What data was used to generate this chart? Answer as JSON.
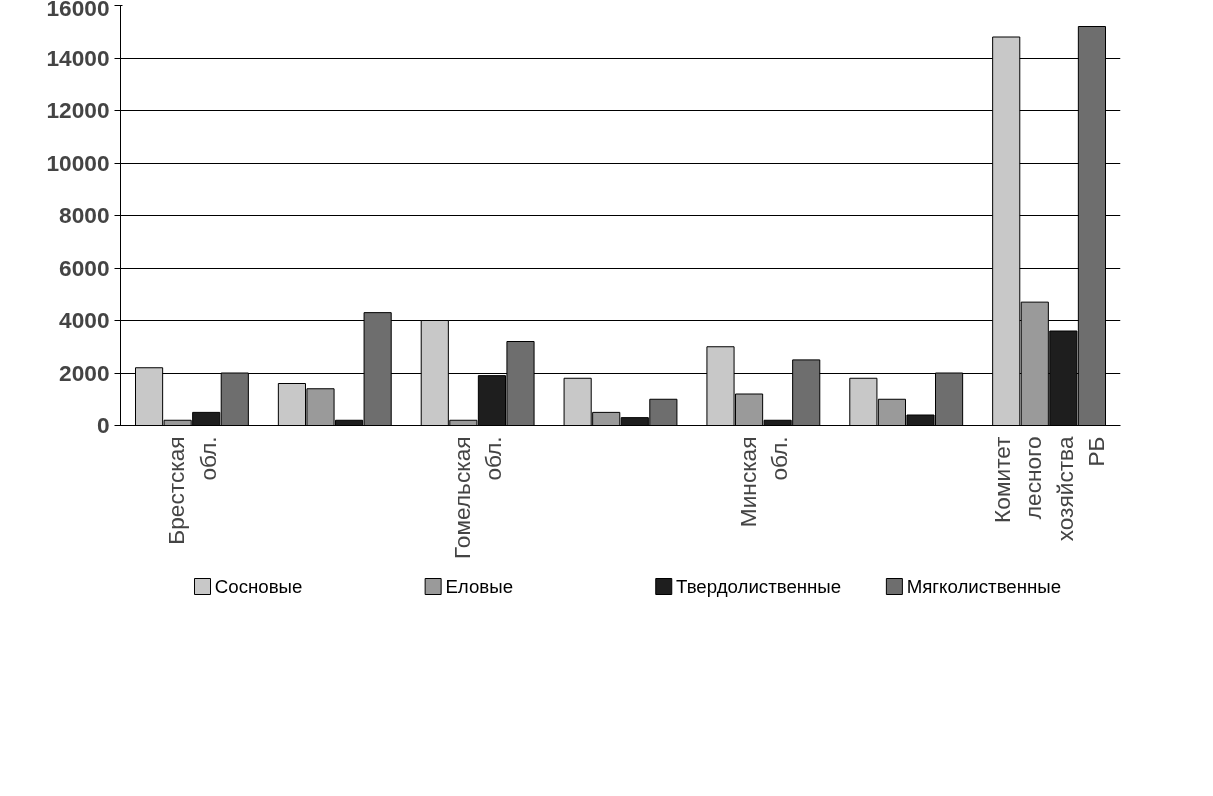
{
  "chart_data": {
    "type": "bar",
    "categories": [
      "Брестская\nобл.",
      null,
      "Гомельская\nобл.",
      null,
      "Минская\nобл.",
      null,
      "Комитет\nлесного\nхозяйства\nРБ"
    ],
    "series": [
      {
        "name": "Сосновые",
        "color": "#c8c8c8",
        "values": [
          2200,
          1600,
          4000,
          1800,
          3000,
          1800,
          14800
        ]
      },
      {
        "name": "Еловые",
        "color": "#9a9a9a",
        "values": [
          200,
          1400,
          200,
          500,
          1200,
          1000,
          4700
        ]
      },
      {
        "name": "Твердолиственные",
        "color": "#1e1e1e",
        "values": [
          500,
          200,
          1900,
          300,
          200,
          400,
          3600
        ]
      },
      {
        "name": "Мягколиственные",
        "color": "#6e6e6e",
        "values": [
          2000,
          4300,
          3200,
          1000,
          2500,
          2000,
          15200
        ]
      }
    ],
    "ylim": [
      0,
      16000
    ],
    "yticks": [
      0,
      2000,
      4000,
      6000,
      8000,
      10000,
      12000,
      14000,
      16000
    ],
    "grid": "y",
    "legend": "bottom"
  }
}
